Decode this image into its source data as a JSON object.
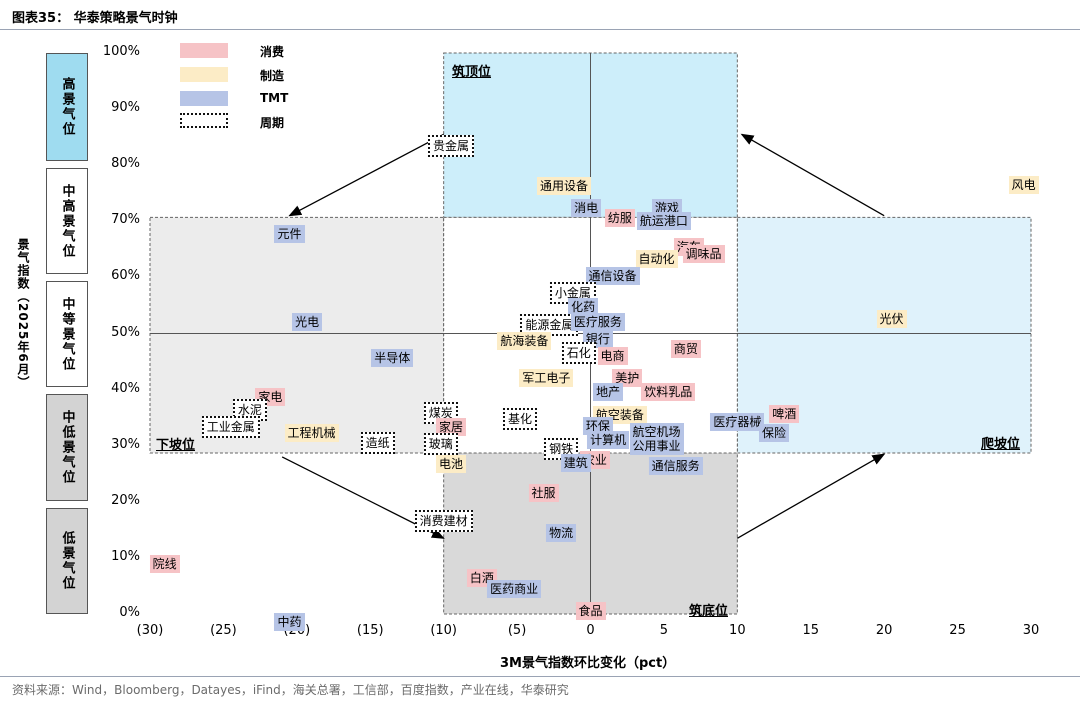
{
  "figure": {
    "title": "图表35：  华泰策略景气时钟",
    "source": "资料来源：Wind，Bloomberg，Datayes，iFind，海关总署，工信部，百度指数，产业在线，华泰研究"
  },
  "y_axis_label": "景气指数（2025年6月）",
  "x_axis_label": "3M景气指数环比变化（pct）",
  "bands": [
    "高景气位",
    "中高景气位",
    "中等景气位",
    "中低景气位",
    "低景气位"
  ],
  "quadrants": [
    "筑顶位",
    "爬坡位",
    "筑底位",
    "下坡位"
  ],
  "legend": [
    {
      "label": "消费",
      "color": "#f6c3c6"
    },
    {
      "label": "制造",
      "color": "#fcecc6"
    },
    {
      "label": "TMT",
      "color": "#b6c4e6"
    },
    {
      "label": "周期",
      "color": "dotted"
    }
  ],
  "colors": {
    "消费": "#f6c3c6",
    "制造": "#fcecc6",
    "TMT": "#b6c4e6",
    "周期": "#ffffff",
    "top_quadrant": "#cdeefa",
    "climb_quadrant": "#dff2fb",
    "bottom_quadrant": "#d9d9d9",
    "down_quadrant": "#ececec",
    "band_high": "#9fdcf0",
    "band_low": "#d3d3d3"
  },
  "chart_data": {
    "type": "scatter",
    "xlim": [
      -30,
      30
    ],
    "ylim": [
      0,
      100
    ],
    "x_ticks": [
      "(30)",
      "(25)",
      "(20)",
      "(15)",
      "(10)",
      "(5)",
      "0",
      "5",
      "10",
      "15",
      "20",
      "25",
      "30"
    ],
    "y_ticks": [
      "0%",
      "10%",
      "20%",
      "30%",
      "40%",
      "50%",
      "60%",
      "70%",
      "80%",
      "90%",
      "100%"
    ],
    "grid": false,
    "legend_position": "top-left",
    "points": [
      {
        "name": "风电",
        "x": 29.5,
        "y": 76.5,
        "group": "制造"
      },
      {
        "name": "贵金属",
        "x": -9.5,
        "y": 83.5,
        "group": "周期"
      },
      {
        "name": "通用设备",
        "x": -1.8,
        "y": 76.3,
        "group": "制造"
      },
      {
        "name": "消电",
        "x": -0.3,
        "y": 72.3,
        "group": "TMT"
      },
      {
        "name": "游戏",
        "x": 5.2,
        "y": 72.3,
        "group": "TMT"
      },
      {
        "name": "纺服",
        "x": 2.0,
        "y": 70.5,
        "group": "消费"
      },
      {
        "name": "航运港口",
        "x": 5.0,
        "y": 70.0,
        "group": "TMT"
      },
      {
        "name": "元件",
        "x": -20.5,
        "y": 67.7,
        "group": "TMT"
      },
      {
        "name": "汽车",
        "x": 6.7,
        "y": 65.5,
        "group": "消费"
      },
      {
        "name": "调味品",
        "x": 7.7,
        "y": 64.2,
        "group": "消费"
      },
      {
        "name": "自动化",
        "x": 4.5,
        "y": 63.2,
        "group": "制造"
      },
      {
        "name": "通信设备",
        "x": 1.5,
        "y": 60.2,
        "group": "TMT"
      },
      {
        "name": "小金属",
        "x": -1.2,
        "y": 57.2,
        "group": "周期"
      },
      {
        "name": "化药",
        "x": -0.5,
        "y": 54.8,
        "group": "TMT"
      },
      {
        "name": "光伏",
        "x": 20.5,
        "y": 52.5,
        "group": "制造"
      },
      {
        "name": "光电",
        "x": -19.3,
        "y": 52.0,
        "group": "TMT"
      },
      {
        "name": "能源金属",
        "x": -2.8,
        "y": 51.5,
        "group": "周期"
      },
      {
        "name": "医疗服务",
        "x": 0.5,
        "y": 52.0,
        "group": "TMT"
      },
      {
        "name": "航海装备",
        "x": -4.5,
        "y": 48.7,
        "group": "制造"
      },
      {
        "name": "银行",
        "x": 0.5,
        "y": 49.0,
        "group": "TMT"
      },
      {
        "name": "商贸",
        "x": 6.5,
        "y": 47.2,
        "group": "消费"
      },
      {
        "name": "石化",
        "x": -0.8,
        "y": 46.5,
        "group": "周期"
      },
      {
        "name": "电商",
        "x": 1.5,
        "y": 46.0,
        "group": "消费"
      },
      {
        "name": "半导体",
        "x": -13.5,
        "y": 45.7,
        "group": "TMT"
      },
      {
        "name": "军工电子",
        "x": -3.0,
        "y": 42.0,
        "group": "制造"
      },
      {
        "name": "美护",
        "x": 2.5,
        "y": 42.0,
        "group": "消费"
      },
      {
        "name": "地产",
        "x": 1.2,
        "y": 39.5,
        "group": "TMT"
      },
      {
        "name": "饮料乳品",
        "x": 5.3,
        "y": 39.5,
        "group": "消费"
      },
      {
        "name": "家电",
        "x": -21.8,
        "y": 38.7,
        "group": "消费"
      },
      {
        "name": "水泥",
        "x": -23.2,
        "y": 36.3,
        "group": "周期"
      },
      {
        "name": "煤炭",
        "x": -10.2,
        "y": 35.8,
        "group": "周期"
      },
      {
        "name": "航空装备",
        "x": 2.0,
        "y": 35.5,
        "group": "制造"
      },
      {
        "name": "啤酒",
        "x": 13.2,
        "y": 35.7,
        "group": "消费"
      },
      {
        "name": "基化",
        "x": -4.8,
        "y": 34.8,
        "group": "周期"
      },
      {
        "name": "医疗器械",
        "x": 10.0,
        "y": 34.2,
        "group": "TMT"
      },
      {
        "name": "环保",
        "x": 0.5,
        "y": 33.5,
        "group": "TMT"
      },
      {
        "name": "家居",
        "x": -9.5,
        "y": 33.3,
        "group": "消费"
      },
      {
        "name": "工业金属",
        "x": -24.5,
        "y": 33.3,
        "group": "周期"
      },
      {
        "name": "保险",
        "x": 12.5,
        "y": 32.3,
        "group": "TMT"
      },
      {
        "name": "工程机械",
        "x": -19.0,
        "y": 32.2,
        "group": "制造"
      },
      {
        "name": "航空机场",
        "x": 4.5,
        "y": 32.5,
        "group": "TMT"
      },
      {
        "name": "计算机",
        "x": 1.2,
        "y": 31.0,
        "group": "TMT"
      },
      {
        "name": "造纸",
        "x": -14.5,
        "y": 30.5,
        "group": "周期"
      },
      {
        "name": "玻璃",
        "x": -10.2,
        "y": 30.3,
        "group": "周期"
      },
      {
        "name": "公用事业",
        "x": 4.5,
        "y": 30.0,
        "group": "TMT"
      },
      {
        "name": "钢铁",
        "x": -2.0,
        "y": 29.5,
        "group": "周期"
      },
      {
        "name": "农业",
        "x": 0.3,
        "y": 27.5,
        "group": "消费"
      },
      {
        "name": "建筑",
        "x": -1.0,
        "y": 27.0,
        "group": "TMT"
      },
      {
        "name": "电池",
        "x": -9.5,
        "y": 26.7,
        "group": "制造"
      },
      {
        "name": "通信服务",
        "x": 5.8,
        "y": 26.4,
        "group": "TMT"
      },
      {
        "name": "社服",
        "x": -3.2,
        "y": 21.5,
        "group": "消费"
      },
      {
        "name": "消费建材",
        "x": -10.0,
        "y": 16.5,
        "group": "周期"
      },
      {
        "name": "物流",
        "x": -2.0,
        "y": 14.5,
        "group": "TMT"
      },
      {
        "name": "院线",
        "x": -29.0,
        "y": 9.0,
        "group": "消费"
      },
      {
        "name": "白酒",
        "x": -7.4,
        "y": 6.5,
        "group": "消费"
      },
      {
        "name": "医药商业",
        "x": -5.2,
        "y": 4.5,
        "group": "TMT"
      },
      {
        "name": "食品",
        "x": 0.0,
        "y": 0.5,
        "group": "消费"
      },
      {
        "name": "中药",
        "x": -20.5,
        "y": -1.5,
        "group": "TMT"
      }
    ]
  }
}
